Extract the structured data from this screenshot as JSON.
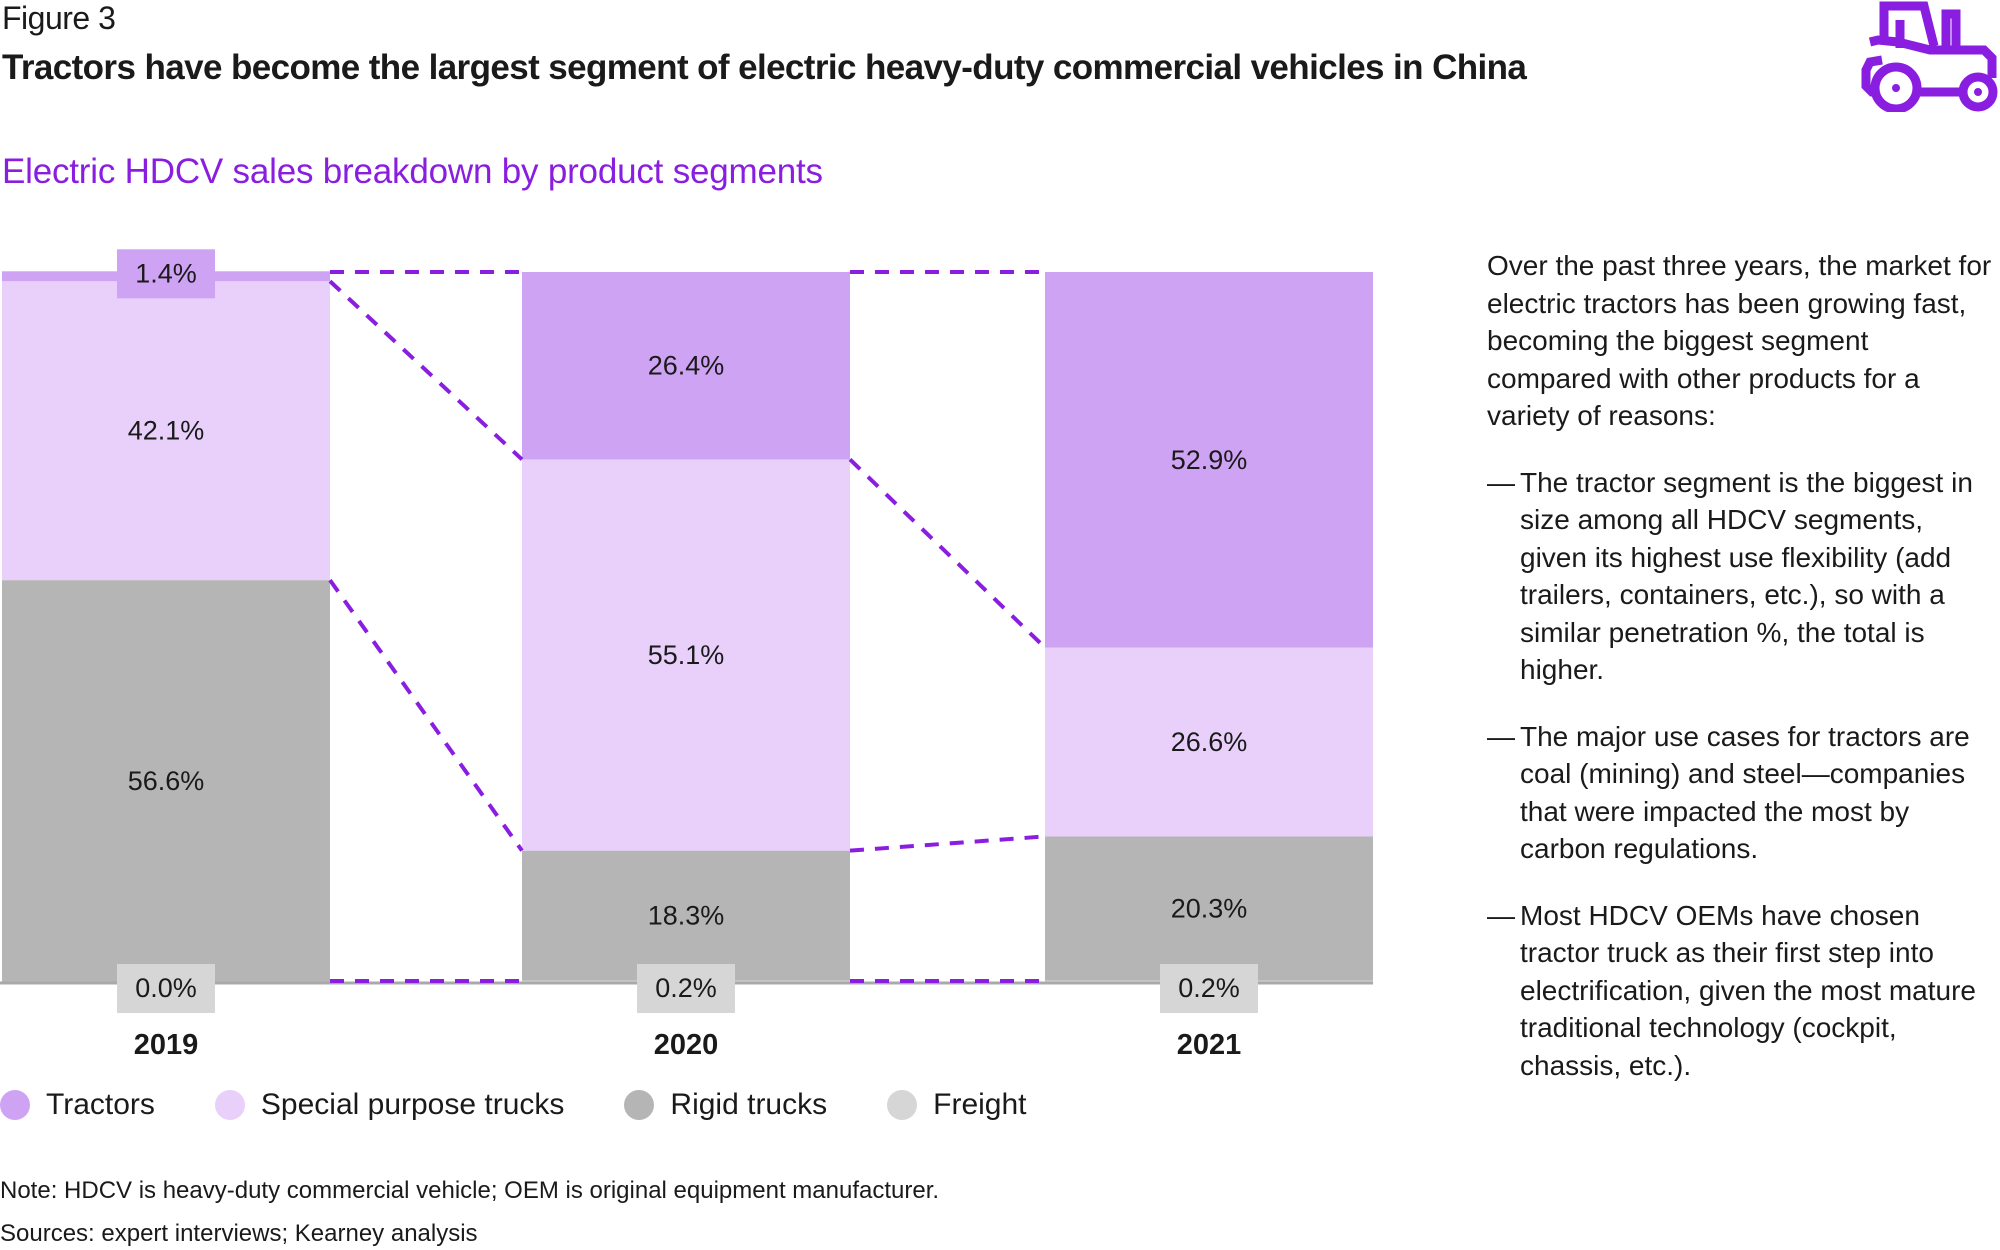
{
  "header": {
    "figure_label": "Figure 3",
    "title": "Tractors have become the largest segment of electric heavy-duty commercial vehicles in China",
    "subtitle": "Electric HDCV sales breakdown by product segments",
    "icon": "tractor-icon"
  },
  "colors": {
    "accent": "#8a1ee0",
    "tractors": "#cfa3f3",
    "special": "#e8d0fb",
    "rigid": "#b5b5b5",
    "freight": "#d6d6d6",
    "connector": "#8a1ee0"
  },
  "chart_data": {
    "type": "bar",
    "stacked": true,
    "title": "Electric HDCV sales breakdown by product segments",
    "xlabel": "",
    "ylabel": "",
    "ylim": [
      0,
      100
    ],
    "unit": "%",
    "grid": false,
    "legend_position": "bottom-left",
    "categories": [
      "2019",
      "2020",
      "2021"
    ],
    "series": [
      {
        "name": "Freight",
        "key": "freight",
        "values": [
          0.0,
          0.2,
          0.2
        ],
        "labels": [
          "0.0%",
          "0.2%",
          "0.2%"
        ]
      },
      {
        "name": "Rigid trucks",
        "key": "rigid",
        "values": [
          56.6,
          18.3,
          20.3
        ],
        "labels": [
          "56.6%",
          "18.3%",
          "20.3%"
        ]
      },
      {
        "name": "Special purpose trucks",
        "key": "special",
        "values": [
          42.1,
          55.1,
          26.6
        ],
        "labels": [
          "42.1%",
          "55.1%",
          "26.6%"
        ]
      },
      {
        "name": "Tractors",
        "key": "tractors",
        "values": [
          1.4,
          26.4,
          52.9
        ],
        "labels": [
          "1.4%",
          "26.4%",
          "52.9%"
        ]
      }
    ],
    "annotations": [
      "Dashed connector lines link segment boundaries between consecutive years"
    ]
  },
  "legend": [
    {
      "label": "Tractors",
      "key": "tractors"
    },
    {
      "label": "Special purpose trucks",
      "key": "special"
    },
    {
      "label": "Rigid trucks",
      "key": "rigid"
    },
    {
      "label": "Freight",
      "key": "freight"
    }
  ],
  "side_text": {
    "intro": "Over the past three years, the market for electric tractors has been growing fast, becoming the biggest segment compared with other products for a variety of reasons:",
    "bullet_marker": "—",
    "bullets": [
      "The tractor segment is the biggest in size among all HDCV segments, given its highest use flexibility (add trailers, containers, etc.), so with a similar penetration %, the total is higher.",
      "The major use cases for tractors are coal (mining) and steel—companies that were impacted the most by carbon regulations.",
      "Most HDCV OEMs have chosen tractor truck as their first step into electrification, given the most mature traditional technology (cockpit, chassis, etc.)."
    ]
  },
  "footer": {
    "note": "Note: HDCV is heavy-duty commercial vehicle; OEM is original equipment manufacturer.",
    "sources": "Sources: expert interviews; Kearney analysis"
  }
}
